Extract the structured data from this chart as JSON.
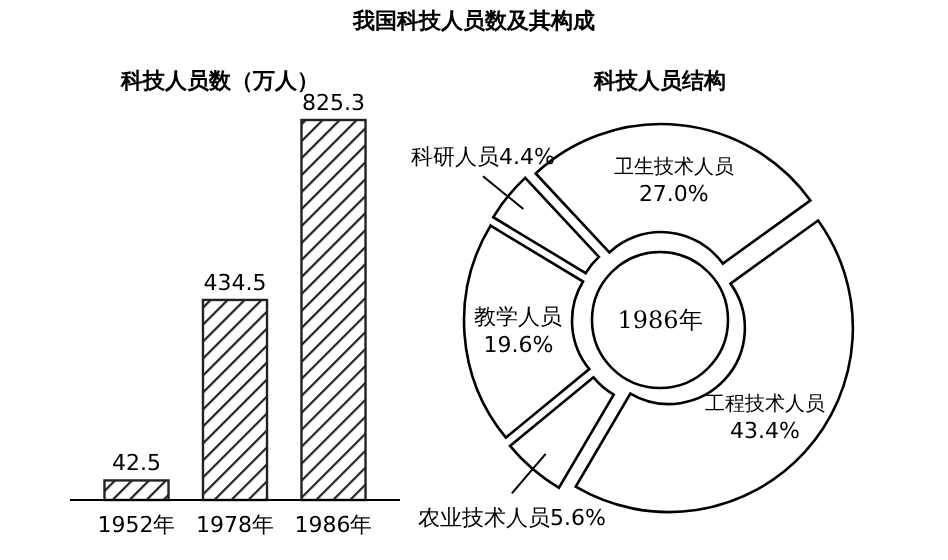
{
  "chart_data": [
    {
      "type": "other",
      "title": "我国科技人员数及其构成"
    },
    {
      "type": "bar",
      "title": "科技人员数（万人）",
      "categories": [
        "1952年",
        "1978年",
        "1986年"
      ],
      "values": [
        42.5,
        434.5,
        825.3
      ],
      "color": "#222222",
      "data_labels": true
    },
    {
      "type": "donut",
      "title": "科技人员结构",
      "categories": [
        "卫生技术人员",
        "工程技术人员",
        "农业技术人员",
        "教学人员",
        "科研人员"
      ],
      "values": [
        27.0,
        43.4,
        5.6,
        19.6,
        4.4
      ],
      "value_labels": [
        "27.0%",
        "43.4%",
        "5.6%",
        "19.6%",
        "4.4%"
      ],
      "colors": [
        "#ffffff",
        "#ffffff",
        "#ffffff",
        "#ffffff",
        "#ffffff"
      ],
      "annotations": [
        "1986年"
      ]
    }
  ]
}
